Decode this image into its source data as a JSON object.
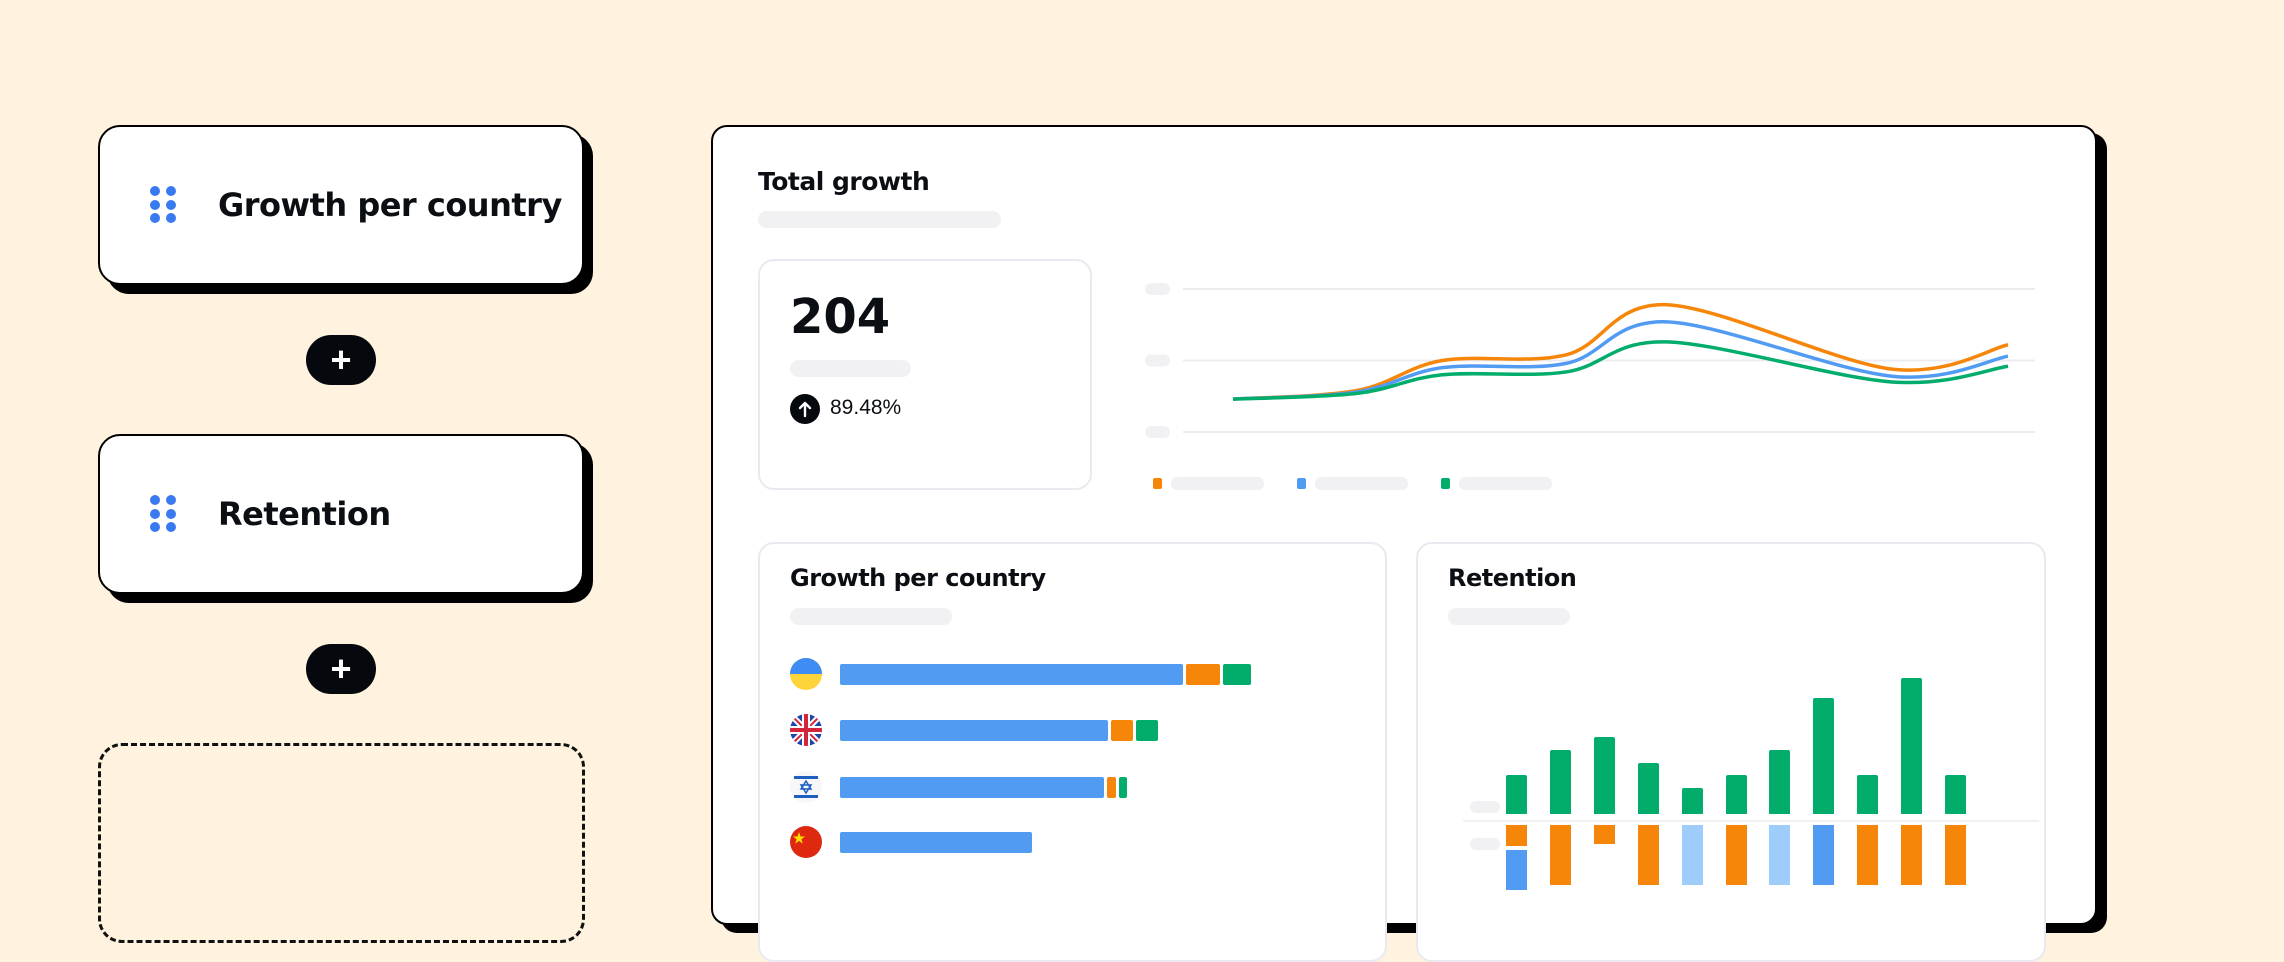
{
  "sidebar": {
    "widgets": [
      {
        "label": "Growth per country",
        "icon": "drag-handle-icon"
      },
      {
        "label": "Retention",
        "icon": "drag-handle-icon"
      }
    ],
    "add_button_label": "+"
  },
  "dashboard": {
    "title": "Total growth",
    "stat": {
      "value": "204",
      "change": "89.48%",
      "change_icon": "arrow-up-icon"
    },
    "growth_card": {
      "title": "Growth per country"
    },
    "retention_card": {
      "title": "Retention"
    }
  },
  "colors": {
    "blue": "#519bf3",
    "orange": "#f6860a",
    "green": "#02ad6c",
    "light_blue": "#9ecdfb",
    "background": "#fff3df"
  },
  "chart_data": [
    {
      "type": "line",
      "x": [
        0,
        16,
        27,
        43,
        56,
        85,
        100
      ],
      "series": [
        {
          "color": "#f6860a",
          "values": [
            23,
            29,
            50,
            54,
            89,
            44,
            61
          ]
        },
        {
          "color": "#519bf3",
          "values": [
            23,
            28,
            45,
            48,
            77,
            39,
            53
          ]
        },
        {
          "color": "#02ad6c",
          "values": [
            23,
            27,
            40,
            42,
            63,
            35,
            46
          ]
        }
      ],
      "ylim": [
        0,
        100
      ],
      "grid": true,
      "legend": "bottom-left"
    },
    {
      "type": "bar",
      "orientation": "horizontal",
      "stacked": true,
      "categories": [
        "Ukraine",
        "United Kingdom",
        "Israel",
        "China"
      ],
      "series": [
        {
          "color": "#519bf3",
          "values": [
            100,
            78,
            77,
            56
          ]
        },
        {
          "color": "#f6860a",
          "values": [
            10,
            6.5,
            2.5,
            0
          ]
        },
        {
          "color": "#02ad6c",
          "values": [
            8,
            6.5,
            2.5,
            0
          ]
        }
      ]
    },
    {
      "type": "bar",
      "values": [
        1.5,
        2.5,
        3,
        2,
        1,
        1.5,
        2.5,
        4.5,
        1.5,
        5.3,
        1.5
      ],
      "lower_colors": [
        "#f6860a",
        "#f6860a",
        "#f6860a",
        "#f6860a",
        "#9ecdfb",
        "#f6860a",
        "#9ecdfb",
        "#519bf3",
        "#f6860a",
        "#f6860a",
        "#f6860a"
      ]
    }
  ]
}
